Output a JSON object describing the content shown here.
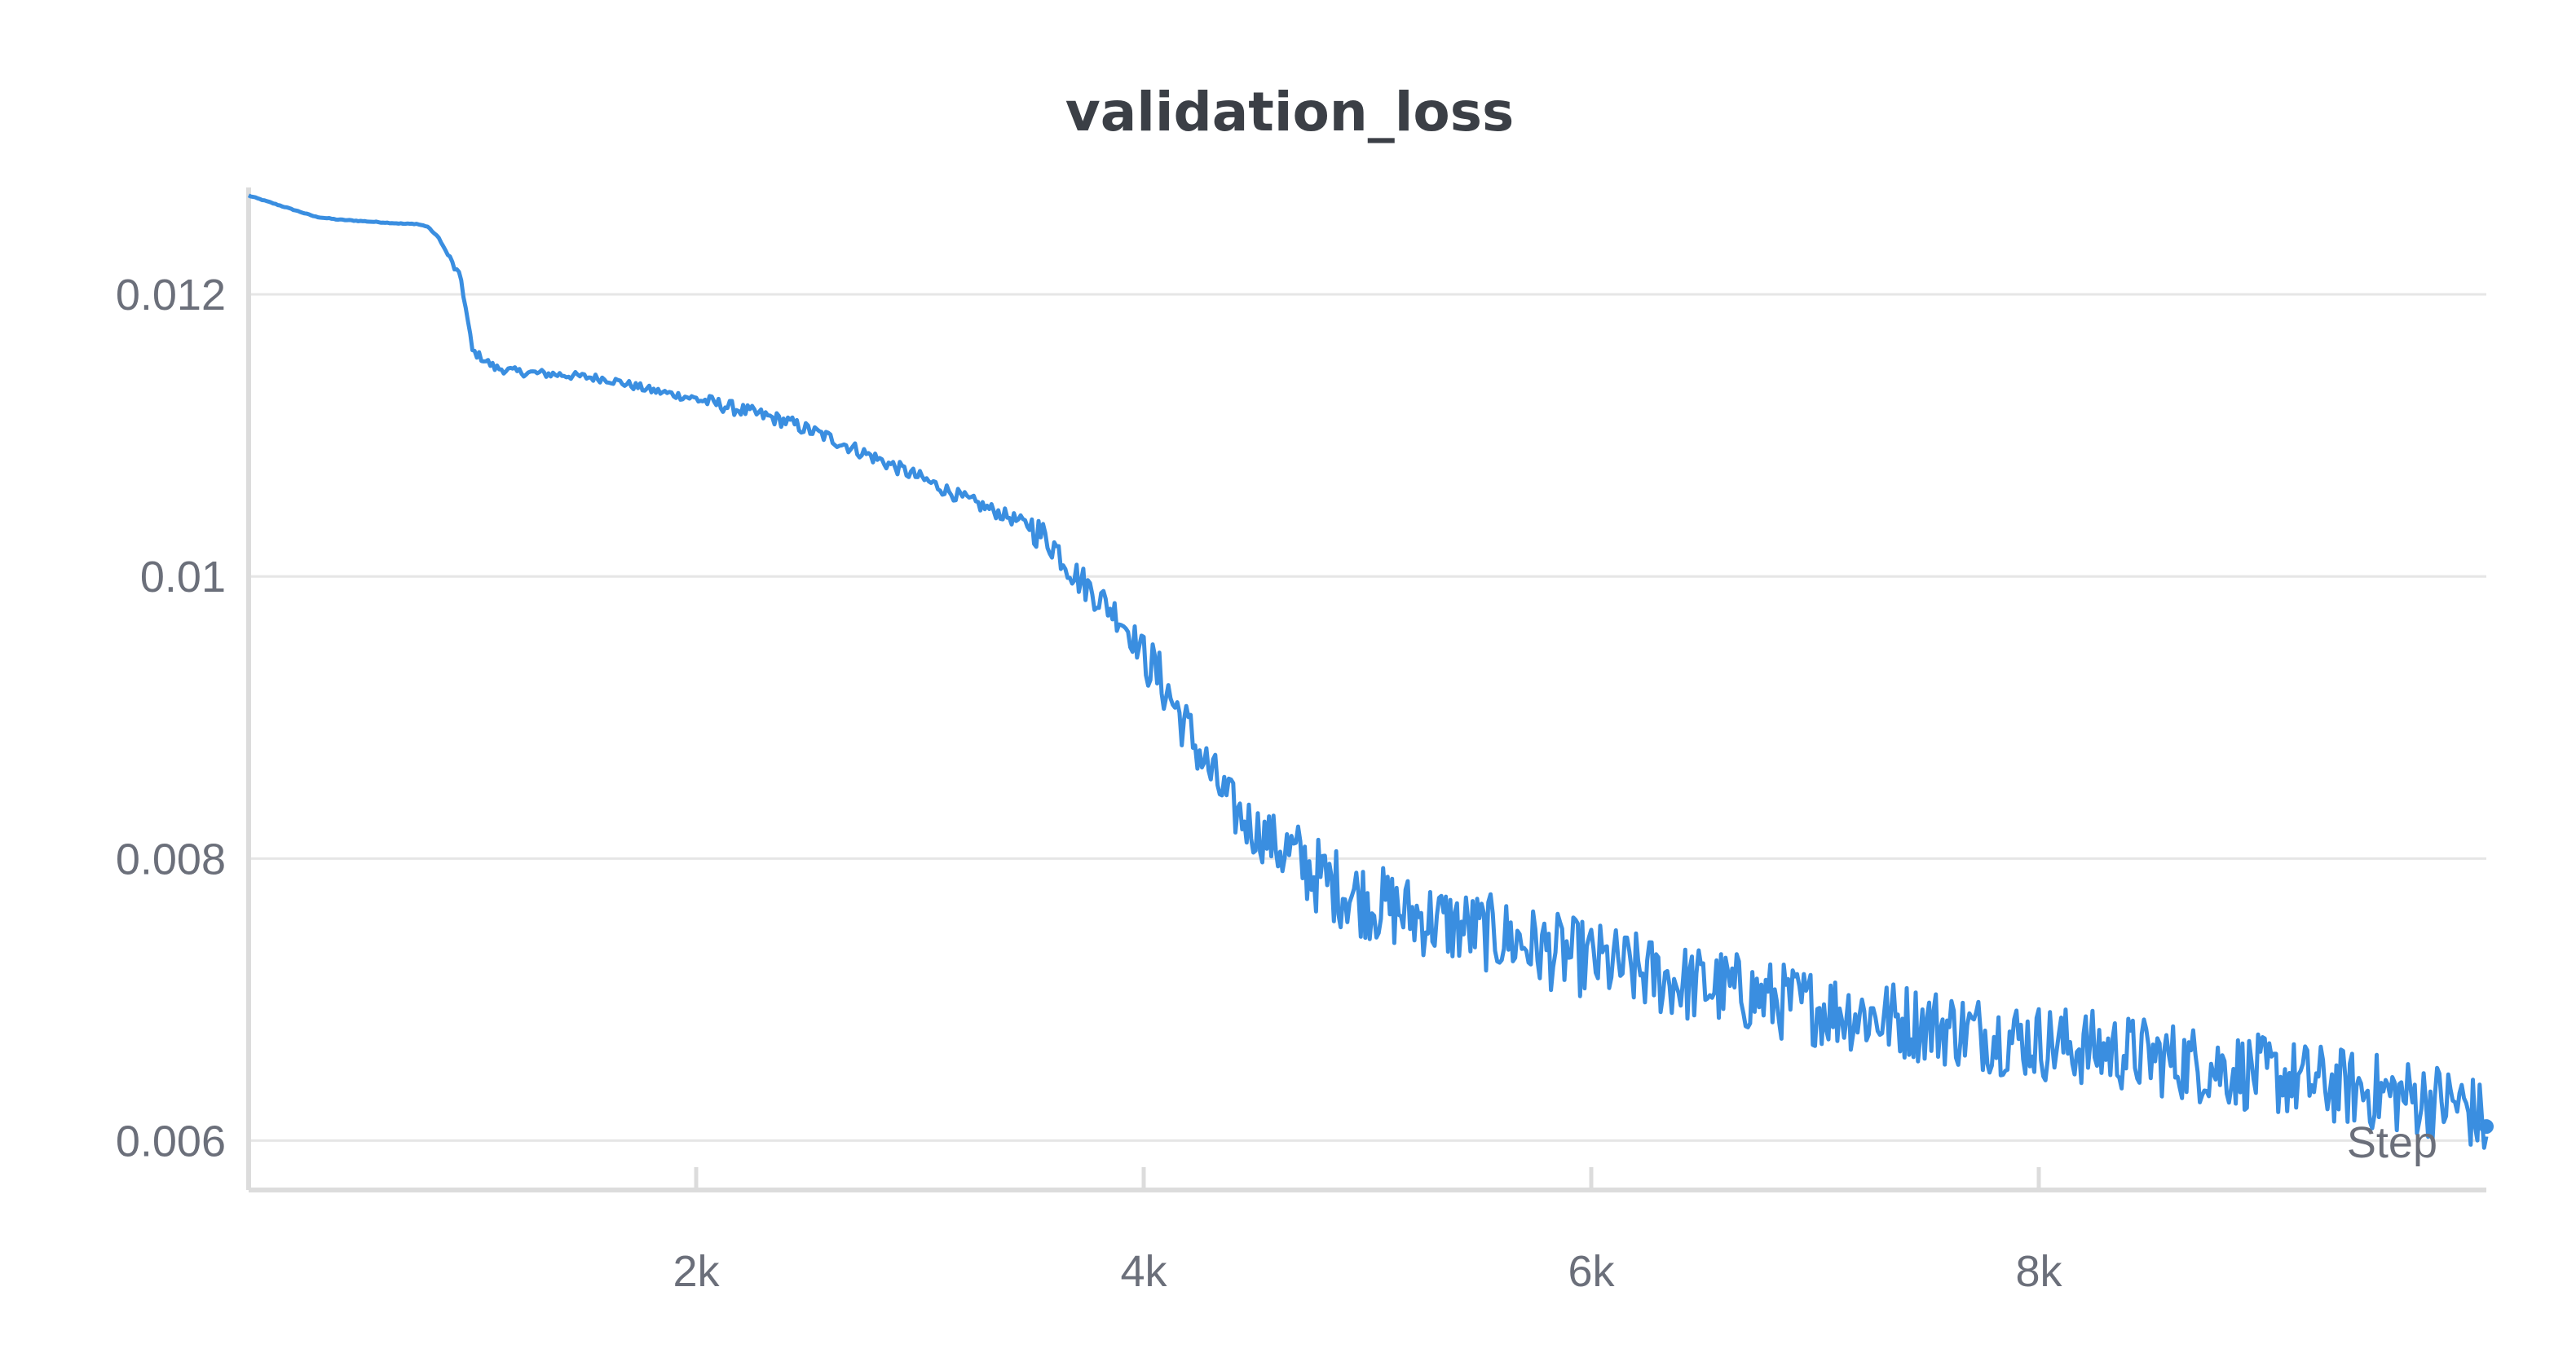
{
  "chart_data": {
    "type": "line",
    "title": "validation_loss",
    "xlabel": "Step",
    "ylabel": "",
    "xlim": [
      0,
      10000
    ],
    "ylim": [
      0.00565,
      0.0127
    ],
    "x_ticks": [
      2000,
      4000,
      6000,
      8000
    ],
    "x_tick_labels": [
      "2k",
      "4k",
      "6k",
      "8k"
    ],
    "y_ticks": [
      0.006,
      0.008,
      0.01,
      0.012
    ],
    "y_tick_labels": [
      "0.006",
      "0.008",
      "0.01",
      "0.012"
    ],
    "grid": true,
    "legend": "none",
    "series": [
      {
        "color": "#3a8ee0",
        "x": [
          0,
          100,
          200,
          300,
          400,
          500,
          600,
          700,
          750,
          800,
          850,
          900,
          950,
          1000,
          1100,
          1200,
          1400,
          1600,
          1800,
          2000,
          2200,
          2400,
          2600,
          2800,
          3000,
          3200,
          3400,
          3500,
          3600,
          3700,
          3800,
          3900,
          4000,
          4100,
          4200,
          4300,
          4400,
          4500,
          4600,
          4800,
          5000,
          5200,
          5400,
          5600,
          5800,
          6000,
          6200,
          6400,
          6600,
          6800,
          7000,
          7200,
          7400,
          7600,
          7800,
          8000,
          8200,
          8400,
          8600,
          8800,
          9000,
          9200,
          9400,
          9600,
          9800,
          9900,
          9950,
          10000
        ],
        "y": [
          0.0127,
          0.01265,
          0.0126,
          0.01255,
          0.01253,
          0.01252,
          0.01251,
          0.0125,
          0.0125,
          0.01248,
          0.0124,
          0.01225,
          0.0121,
          0.0116,
          0.01148,
          0.01145,
          0.01143,
          0.0114,
          0.01132,
          0.01126,
          0.01118,
          0.0111,
          0.01098,
          0.01084,
          0.0107,
          0.01055,
          0.01042,
          0.01035,
          0.01022,
          0.01,
          0.00985,
          0.0097,
          0.00945,
          0.0092,
          0.0089,
          0.0086,
          0.00835,
          0.0082,
          0.0081,
          0.00785,
          0.0077,
          0.0076,
          0.00752,
          0.00745,
          0.00735,
          0.00728,
          0.0072,
          0.00712,
          0.00708,
          0.007,
          0.00695,
          0.0069,
          0.00685,
          0.0068,
          0.00675,
          0.0067,
          0.00666,
          0.00662,
          0.00657,
          0.00652,
          0.00647,
          0.00642,
          0.00637,
          0.00632,
          0.00628,
          0.00625,
          0.00618,
          0.0061
        ]
      }
    ]
  }
}
